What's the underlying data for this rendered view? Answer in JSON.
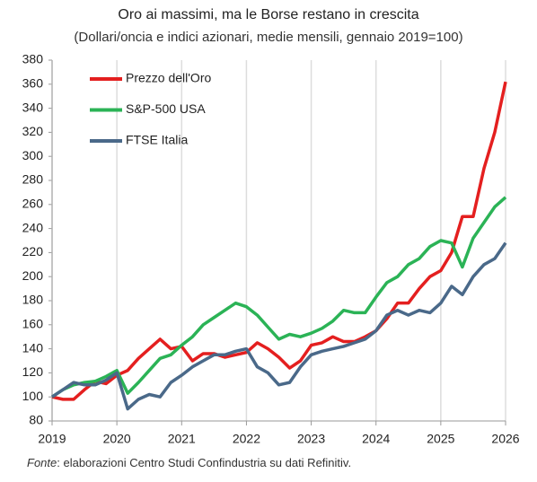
{
  "chart_data": {
    "type": "line",
    "title": "Oro ai massimi, ma le Borse restano in crescita",
    "subtitle": "(Dollari/oncia e indici azionari, medie mensili, gennaio 2019=100)",
    "source_label": "Fonte",
    "source": ": elaborazioni Centro Studi Confindustria su dati Refinitiv.",
    "x": [
      2019,
      2019.167,
      2019.333,
      2019.5,
      2019.667,
      2019.833,
      2020,
      2020.167,
      2020.333,
      2020.5,
      2020.667,
      2020.833,
      2021,
      2021.167,
      2021.333,
      2021.5,
      2021.667,
      2021.833,
      2022,
      2022.167,
      2022.333,
      2022.5,
      2022.667,
      2022.833,
      2023,
      2023.167,
      2023.333,
      2023.5,
      2023.667,
      2023.833,
      2024,
      2024.167,
      2024.333,
      2024.5,
      2024.667,
      2024.833,
      2025,
      2025.167,
      2025.333,
      2025.5,
      2025.667,
      2025.833,
      2026
    ],
    "series": [
      {
        "name": "Prezzo dell'Oro",
        "color": "#e41f1f",
        "values": [
          100,
          98,
          98,
          106,
          113,
          111,
          118,
          122,
          132,
          140,
          148,
          140,
          142,
          130,
          136,
          136,
          133,
          135,
          137,
          145,
          140,
          133,
          124,
          130,
          143,
          145,
          150,
          146,
          146,
          150,
          155,
          165,
          178,
          178,
          190,
          200,
          205,
          220,
          250,
          250,
          290,
          320,
          362
        ]
      },
      {
        "name": "S&P-500 USA",
        "color": "#2bb356",
        "values": [
          100,
          106,
          110,
          112,
          113,
          117,
          122,
          103,
          112,
          122,
          132,
          135,
          143,
          150,
          160,
          166,
          172,
          178,
          175,
          168,
          158,
          148,
          152,
          150,
          153,
          157,
          163,
          172,
          170,
          170,
          183,
          195,
          200,
          210,
          215,
          225,
          230,
          228,
          208,
          232,
          245,
          258,
          266
        ]
      },
      {
        "name": "FTSE Italia",
        "color": "#4a6989",
        "values": [
          100,
          106,
          112,
          110,
          110,
          114,
          120,
          90,
          98,
          102,
          100,
          112,
          118,
          125,
          130,
          135,
          135,
          138,
          140,
          125,
          120,
          110,
          112,
          125,
          135,
          138,
          140,
          142,
          145,
          148,
          155,
          168,
          172,
          168,
          172,
          170,
          178,
          192,
          185,
          200,
          210,
          215,
          228
        ]
      }
    ],
    "xlim": [
      2019,
      2026
    ],
    "xticks": [
      2019,
      2020,
      2021,
      2022,
      2023,
      2024,
      2025,
      2026
    ],
    "ylim": [
      80,
      380
    ],
    "yticks": [
      80,
      100,
      120,
      140,
      160,
      180,
      200,
      220,
      240,
      260,
      280,
      300,
      320,
      340,
      360,
      380
    ],
    "grid": true,
    "legend": "upper-left"
  }
}
